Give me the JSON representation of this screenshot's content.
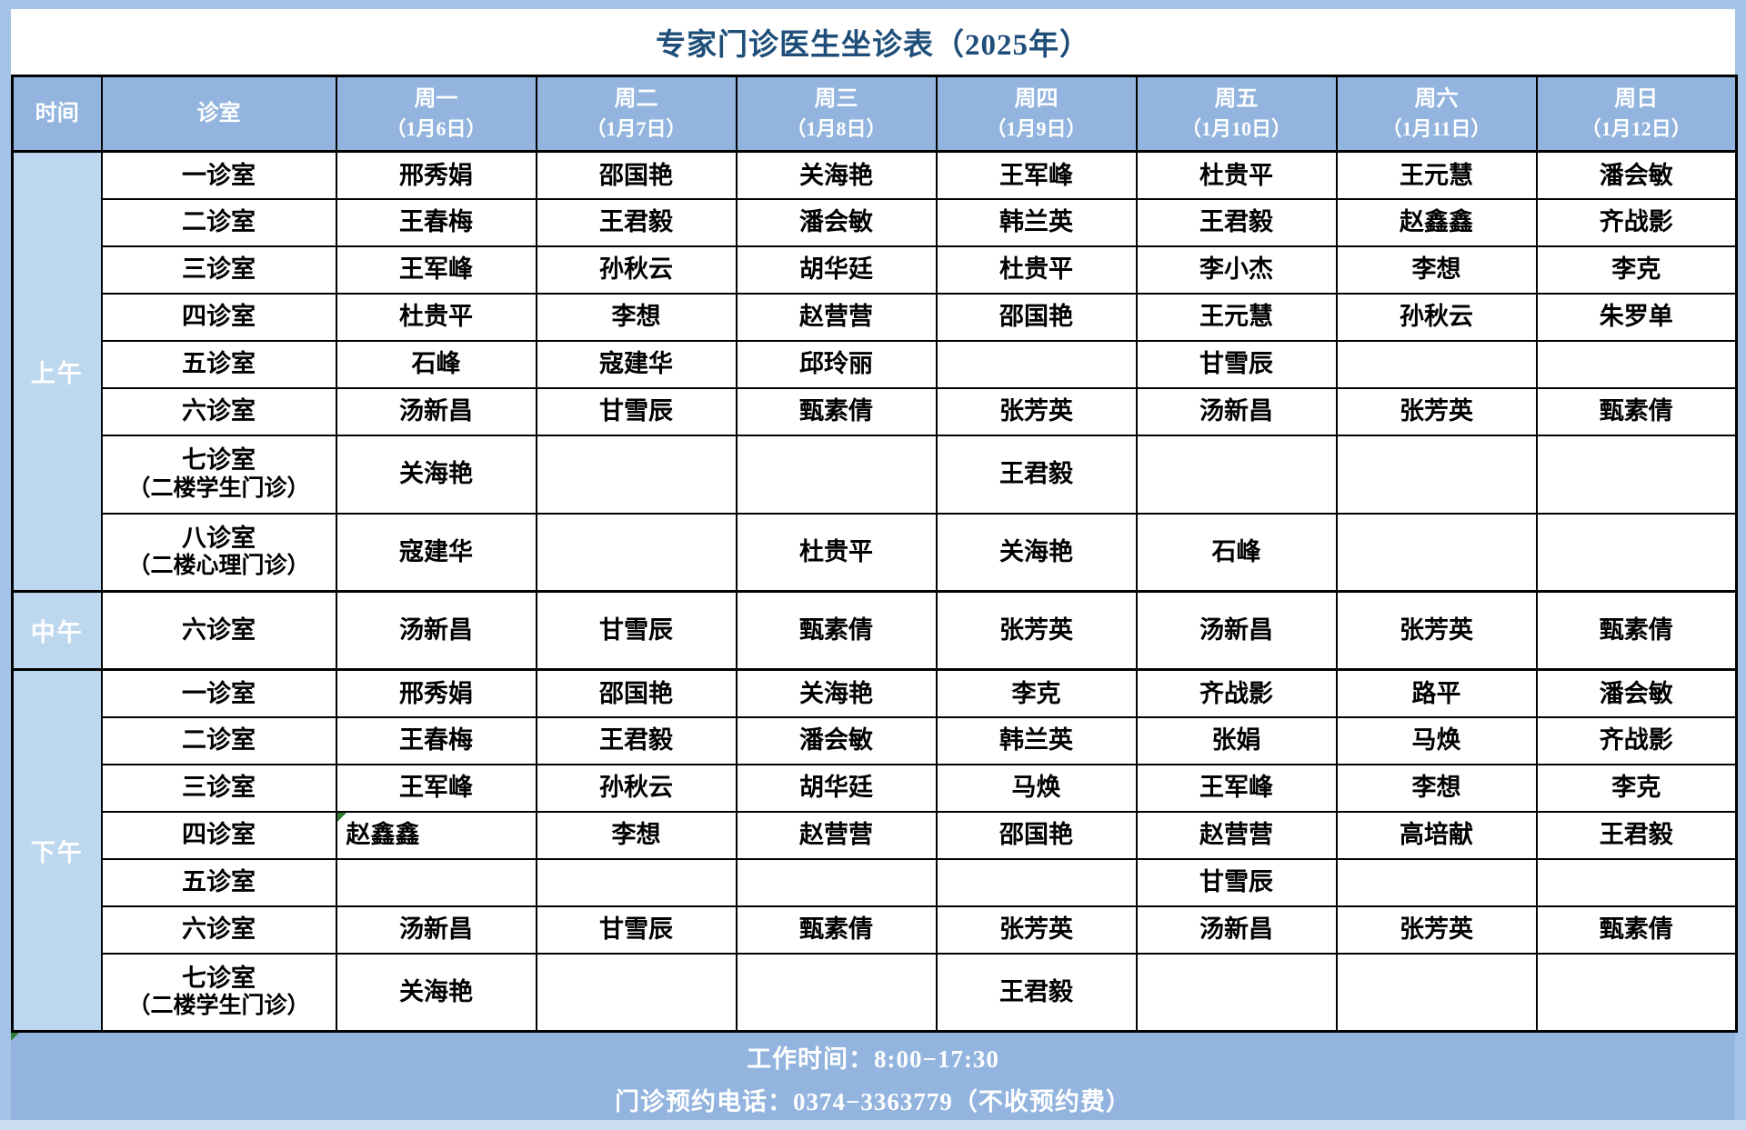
{
  "title": "专家门诊医生坐诊表（2025年）",
  "columns": {
    "time": "时间",
    "room": "诊室",
    "days": [
      {
        "weekday": "周一",
        "date": "（1月6日）"
      },
      {
        "weekday": "周二",
        "date": "（1月7日）"
      },
      {
        "weekday": "周三",
        "date": "（1月8日）"
      },
      {
        "weekday": "周四",
        "date": "（1月9日）"
      },
      {
        "weekday": "周五",
        "date": "（1月10日）"
      },
      {
        "weekday": "周六",
        "date": "（1月11日）"
      },
      {
        "weekday": "周日",
        "date": "（1月12日）"
      }
    ]
  },
  "sections": [
    {
      "time": "上午",
      "rows": [
        {
          "room": "一诊室",
          "cells": [
            "邢秀娟",
            "邵国艳",
            "关海艳",
            "王军峰",
            "杜贵平",
            "王元慧",
            "潘会敏"
          ]
        },
        {
          "room": "二诊室",
          "cells": [
            "王春梅",
            "王君毅",
            "潘会敏",
            "韩兰英",
            "王君毅",
            "赵鑫鑫",
            "齐战影"
          ]
        },
        {
          "room": "三诊室",
          "cells": [
            "王军峰",
            "孙秋云",
            "胡华廷",
            "杜贵平",
            "李小杰",
            "李想",
            "李克"
          ]
        },
        {
          "room": "四诊室",
          "cells": [
            "杜贵平",
            "李想",
            "赵营营",
            "邵国艳",
            "王元慧",
            "孙秋云",
            "朱罗单"
          ]
        },
        {
          "room": "五诊室",
          "cells": [
            "石峰",
            "寇建华",
            "邱玲丽",
            "",
            "甘雪辰",
            "",
            ""
          ]
        },
        {
          "room": "六诊室",
          "cells": [
            "汤新昌",
            "甘雪辰",
            "甄素倩",
            "张芳英",
            "汤新昌",
            "张芳英",
            "甄素倩"
          ]
        },
        {
          "room": "七诊室",
          "room_note": "（二楼学生门诊）",
          "cells": [
            "关海艳",
            "",
            "",
            "王君毅",
            "",
            "",
            ""
          ]
        },
        {
          "room": "八诊室",
          "room_note": "（二楼心理门诊）",
          "cells": [
            "寇建华",
            "",
            "杜贵平",
            "关海艳",
            "石峰",
            "",
            ""
          ]
        }
      ]
    },
    {
      "time": "中午",
      "rows": [
        {
          "room": "六诊室",
          "cells": [
            "汤新昌",
            "甘雪辰",
            "甄素倩",
            "张芳英",
            "汤新昌",
            "张芳英",
            "甄素倩"
          ]
        }
      ]
    },
    {
      "time": "下午",
      "rows": [
        {
          "room": "一诊室",
          "cells": [
            "邢秀娟",
            "邵国艳",
            "关海艳",
            "李克",
            "齐战影",
            "路平",
            "潘会敏"
          ]
        },
        {
          "room": "二诊室",
          "cells": [
            "王春梅",
            "王君毅",
            "潘会敏",
            "韩兰英",
            "张娟",
            "马焕",
            "齐战影"
          ]
        },
        {
          "room": "三诊室",
          "cells": [
            "王军峰",
            "孙秋云",
            "胡华廷",
            "马焕",
            "王军峰",
            "李想",
            "李克"
          ]
        },
        {
          "room": "四诊室",
          "cells": [
            "赵鑫鑫",
            "李想",
            "赵营营",
            "邵国艳",
            "赵营营",
            "高培献",
            "王君毅"
          ],
          "flagged_cell_index": 0
        },
        {
          "room": "五诊室",
          "cells": [
            "",
            "",
            "",
            "",
            "甘雪辰",
            "",
            ""
          ]
        },
        {
          "room": "六诊室",
          "cells": [
            "汤新昌",
            "甘雪辰",
            "甄素倩",
            "张芳英",
            "汤新昌",
            "张芳英",
            "甄素倩"
          ]
        },
        {
          "room": "七诊室",
          "room_note": "（二楼学生门诊）",
          "cells": [
            "关海艳",
            "",
            "",
            "王君毅",
            "",
            "",
            ""
          ]
        }
      ]
    }
  ],
  "footer": {
    "line1": "工作时间：8:00−17:30",
    "line2": "门诊预约电话：0374−3363779（不收预约费）"
  },
  "colors": {
    "header_bg": "#92B4DE",
    "time_col_bg": "#BDD7EE",
    "footer_bg": "#92B4DE",
    "page_bg": "#A5C3E7",
    "title_color": "#1F4E79",
    "flag_color": "#2E7D32"
  }
}
